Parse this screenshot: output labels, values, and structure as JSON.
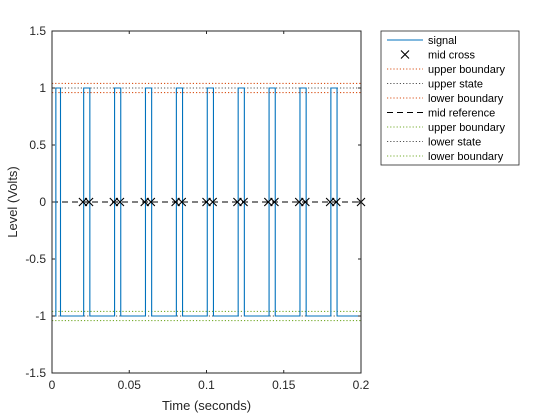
{
  "chart_data": {
    "type": "line",
    "xlabel": "Time (seconds)",
    "ylabel": "Level (Volts)",
    "xlim": [
      0,
      0.2
    ],
    "ylim": [
      -1.5,
      1.5
    ],
    "xticks": [
      0,
      0.05,
      0.1,
      0.15,
      0.2
    ],
    "xtick_labels": [
      "0",
      "0.05",
      "0.1",
      "0.15",
      "0.2"
    ],
    "yticks": [
      -1.5,
      -1,
      -0.5,
      0,
      0.5,
      1,
      1.5
    ],
    "ytick_labels": [
      "-1.5",
      "-1",
      "-0.5",
      "0",
      "0.5",
      "1",
      "1.5"
    ],
    "grid": false,
    "legend_position": "outside top-right",
    "signal": {
      "name": "signal",
      "color": "#0072BD",
      "high": 1,
      "low": -1,
      "pulses": [
        [
          0.0025,
          0.0055
        ],
        [
          0.0205,
          0.0245
        ],
        [
          0.0405,
          0.0445
        ],
        [
          0.0605,
          0.0645
        ],
        [
          0.0805,
          0.0845
        ],
        [
          0.1005,
          0.1045
        ],
        [
          0.1205,
          0.1245
        ],
        [
          0.1405,
          0.1445
        ],
        [
          0.1605,
          0.1645
        ],
        [
          0.1805,
          0.1845
        ]
      ]
    },
    "mid_cross": {
      "name": "mid cross",
      "color": "#000000",
      "x": [
        0.02,
        0.024,
        0.04,
        0.044,
        0.06,
        0.064,
        0.08,
        0.084,
        0.1,
        0.104,
        0.12,
        0.124,
        0.14,
        0.144,
        0.16,
        0.164,
        0.18,
        0.184,
        0.2
      ],
      "y": 0
    },
    "reference_lines": [
      {
        "name": "upper boundary",
        "value": 1.04,
        "color": "#D95319",
        "style": "dotted"
      },
      {
        "name": "upper state",
        "value": 1.0,
        "color": "#555555",
        "style": "dotted"
      },
      {
        "name": "lower boundary",
        "value": 0.96,
        "color": "#D95319",
        "style": "dotted"
      },
      {
        "name": "mid reference",
        "value": 0,
        "color": "#000000",
        "style": "dashed"
      },
      {
        "name": "upper boundary",
        "value": -0.96,
        "color": "#77AC30",
        "style": "dotted"
      },
      {
        "name": "lower state",
        "value": -1.0,
        "color": "#555555",
        "style": "dotted"
      },
      {
        "name": "lower boundary",
        "value": -1.04,
        "color": "#77AC30",
        "style": "dotted"
      }
    ],
    "legend": [
      {
        "label": "signal",
        "color": "#0072BD",
        "style": "solid"
      },
      {
        "label": "mid cross",
        "color": "#000000",
        "style": "marker-x"
      },
      {
        "label": "upper boundary",
        "color": "#D95319",
        "style": "dotted"
      },
      {
        "label": "upper state",
        "color": "#555555",
        "style": "dotted"
      },
      {
        "label": "lower boundary",
        "color": "#D95319",
        "style": "dotted"
      },
      {
        "label": "mid reference",
        "color": "#000000",
        "style": "dashed"
      },
      {
        "label": "upper boundary",
        "color": "#77AC30",
        "style": "dotted"
      },
      {
        "label": "lower state",
        "color": "#555555",
        "style": "dotted"
      },
      {
        "label": "lower boundary",
        "color": "#77AC30",
        "style": "dotted"
      }
    ]
  }
}
